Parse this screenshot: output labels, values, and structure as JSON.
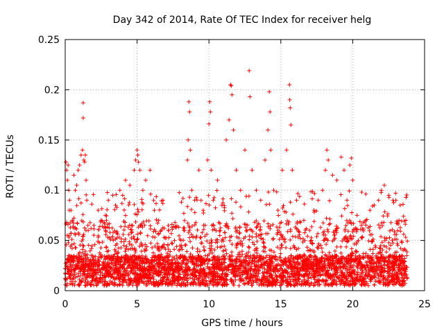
{
  "chart_data": {
    "type": "scatter",
    "title": "Day 342 of 2014, Rate Of TEC Index for receiver helg",
    "xlabel": "GPS time / hours",
    "ylabel": "ROTI / TECUs",
    "xlim": [
      0,
      25
    ],
    "ylim": [
      0,
      0.25
    ],
    "xticks": [
      0,
      5,
      10,
      15,
      20,
      25
    ],
    "yticks": [
      0,
      0.05,
      0.1,
      0.15,
      0.2,
      0.25
    ],
    "x_tick_labels": [
      "0",
      "5",
      "10",
      "15",
      "20",
      "25"
    ],
    "y_tick_labels": [
      "0",
      "0.05",
      "0.1",
      "0.15",
      "0.2",
      "0.25"
    ],
    "grid": true,
    "marker": "+",
    "color": "#ff0000",
    "series": [
      {
        "points": [
          [
            0.05,
            0.128
          ],
          [
            0.1,
            0.12
          ],
          [
            0.15,
            0.11
          ],
          [
            0.2,
            0.125
          ],
          [
            0.25,
            0.1
          ],
          [
            0.3,
            0.09
          ],
          [
            0.4,
            0.08
          ],
          [
            0.5,
            0.07
          ],
          [
            0.6,
            0.115
          ],
          [
            0.7,
            0.1
          ],
          [
            0.8,
            0.105
          ],
          [
            0.9,
            0.12
          ],
          [
            1.0,
            0.125
          ],
          [
            1.1,
            0.135
          ],
          [
            1.2,
            0.14
          ],
          [
            1.25,
            0.187
          ],
          [
            1.25,
            0.172
          ],
          [
            1.3,
            0.13
          ],
          [
            1.35,
            0.128
          ],
          [
            1.4,
            0.135
          ],
          [
            1.45,
            0.11
          ],
          [
            1.5,
            0.09
          ],
          [
            1.6,
            0.06
          ],
          [
            2.0,
            0.065
          ],
          [
            2.3,
            0.08
          ],
          [
            2.5,
            0.07
          ],
          [
            2.8,
            0.075
          ],
          [
            3.0,
            0.09
          ],
          [
            3.3,
            0.095
          ],
          [
            3.5,
            0.085
          ],
          [
            3.8,
            0.1
          ],
          [
            4.0,
            0.095
          ],
          [
            4.2,
            0.11
          ],
          [
            4.5,
            0.105
          ],
          [
            4.8,
            0.12
          ],
          [
            4.9,
            0.13
          ],
          [
            5.0,
            0.14
          ],
          [
            5.05,
            0.135
          ],
          [
            5.1,
            0.128
          ],
          [
            5.2,
            0.12
          ],
          [
            5.4,
            0.1
          ],
          [
            5.6,
            0.11
          ],
          [
            5.9,
            0.12
          ],
          [
            6.2,
            0.08
          ],
          [
            6.5,
            0.07
          ],
          [
            6.8,
            0.09
          ],
          [
            7.2,
            0.06
          ],
          [
            7.6,
            0.05
          ],
          [
            8.0,
            0.045
          ],
          [
            8.3,
            0.06
          ],
          [
            8.5,
            0.13
          ],
          [
            8.55,
            0.15
          ],
          [
            8.6,
            0.188
          ],
          [
            8.65,
            0.178
          ],
          [
            8.7,
            0.14
          ],
          [
            8.8,
            0.1
          ],
          [
            9.0,
            0.09
          ],
          [
            9.3,
            0.12
          ],
          [
            9.6,
            0.08
          ],
          [
            9.9,
            0.13
          ],
          [
            10.0,
            0.166
          ],
          [
            10.05,
            0.188
          ],
          [
            10.1,
            0.178
          ],
          [
            10.15,
            0.12
          ],
          [
            10.3,
            0.09
          ],
          [
            10.6,
            0.11
          ],
          [
            10.9,
            0.085
          ],
          [
            11.2,
            0.15
          ],
          [
            11.4,
            0.17
          ],
          [
            11.5,
            0.205
          ],
          [
            11.55,
            0.204
          ],
          [
            11.6,
            0.195
          ],
          [
            11.7,
            0.16
          ],
          [
            11.9,
            0.12
          ],
          [
            12.2,
            0.1
          ],
          [
            12.5,
            0.14
          ],
          [
            12.8,
            0.219
          ],
          [
            12.85,
            0.193
          ],
          [
            13.0,
            0.12
          ],
          [
            13.3,
            0.1
          ],
          [
            13.6,
            0.09
          ],
          [
            13.9,
            0.13
          ],
          [
            14.1,
            0.16
          ],
          [
            14.2,
            0.198
          ],
          [
            14.25,
            0.178
          ],
          [
            14.3,
            0.14
          ],
          [
            14.5,
            0.1
          ],
          [
            14.8,
            0.08
          ],
          [
            15.1,
            0.12
          ],
          [
            15.4,
            0.14
          ],
          [
            15.6,
            0.205
          ],
          [
            15.62,
            0.19
          ],
          [
            15.65,
            0.182
          ],
          [
            15.7,
            0.165
          ],
          [
            15.8,
            0.12
          ],
          [
            16.1,
            0.09
          ],
          [
            16.6,
            0.07
          ],
          [
            17.0,
            0.06
          ],
          [
            17.3,
            0.08
          ],
          [
            17.6,
            0.09
          ],
          [
            17.9,
            0.1
          ],
          [
            18.1,
            0.12
          ],
          [
            18.2,
            0.14
          ],
          [
            18.3,
            0.13
          ],
          [
            18.6,
            0.115
          ],
          [
            18.9,
            0.11
          ],
          [
            19.2,
            0.133
          ],
          [
            19.4,
            0.12
          ],
          [
            19.6,
            0.09
          ],
          [
            19.8,
            0.125
          ],
          [
            19.9,
            0.132
          ],
          [
            20.0,
            0.11
          ],
          [
            20.3,
            0.075
          ],
          [
            20.6,
            0.065
          ],
          [
            20.9,
            0.07
          ],
          [
            21.2,
            0.08
          ],
          [
            21.5,
            0.085
          ],
          [
            21.8,
            0.09
          ],
          [
            22.0,
            0.1
          ],
          [
            22.2,
            0.105
          ],
          [
            22.5,
            0.095
          ],
          [
            22.8,
            0.09
          ],
          [
            23.0,
            0.09
          ],
          [
            23.3,
            0.085
          ],
          [
            23.5,
            0.086
          ],
          [
            23.7,
            0.07
          ]
        ]
      }
    ]
  }
}
